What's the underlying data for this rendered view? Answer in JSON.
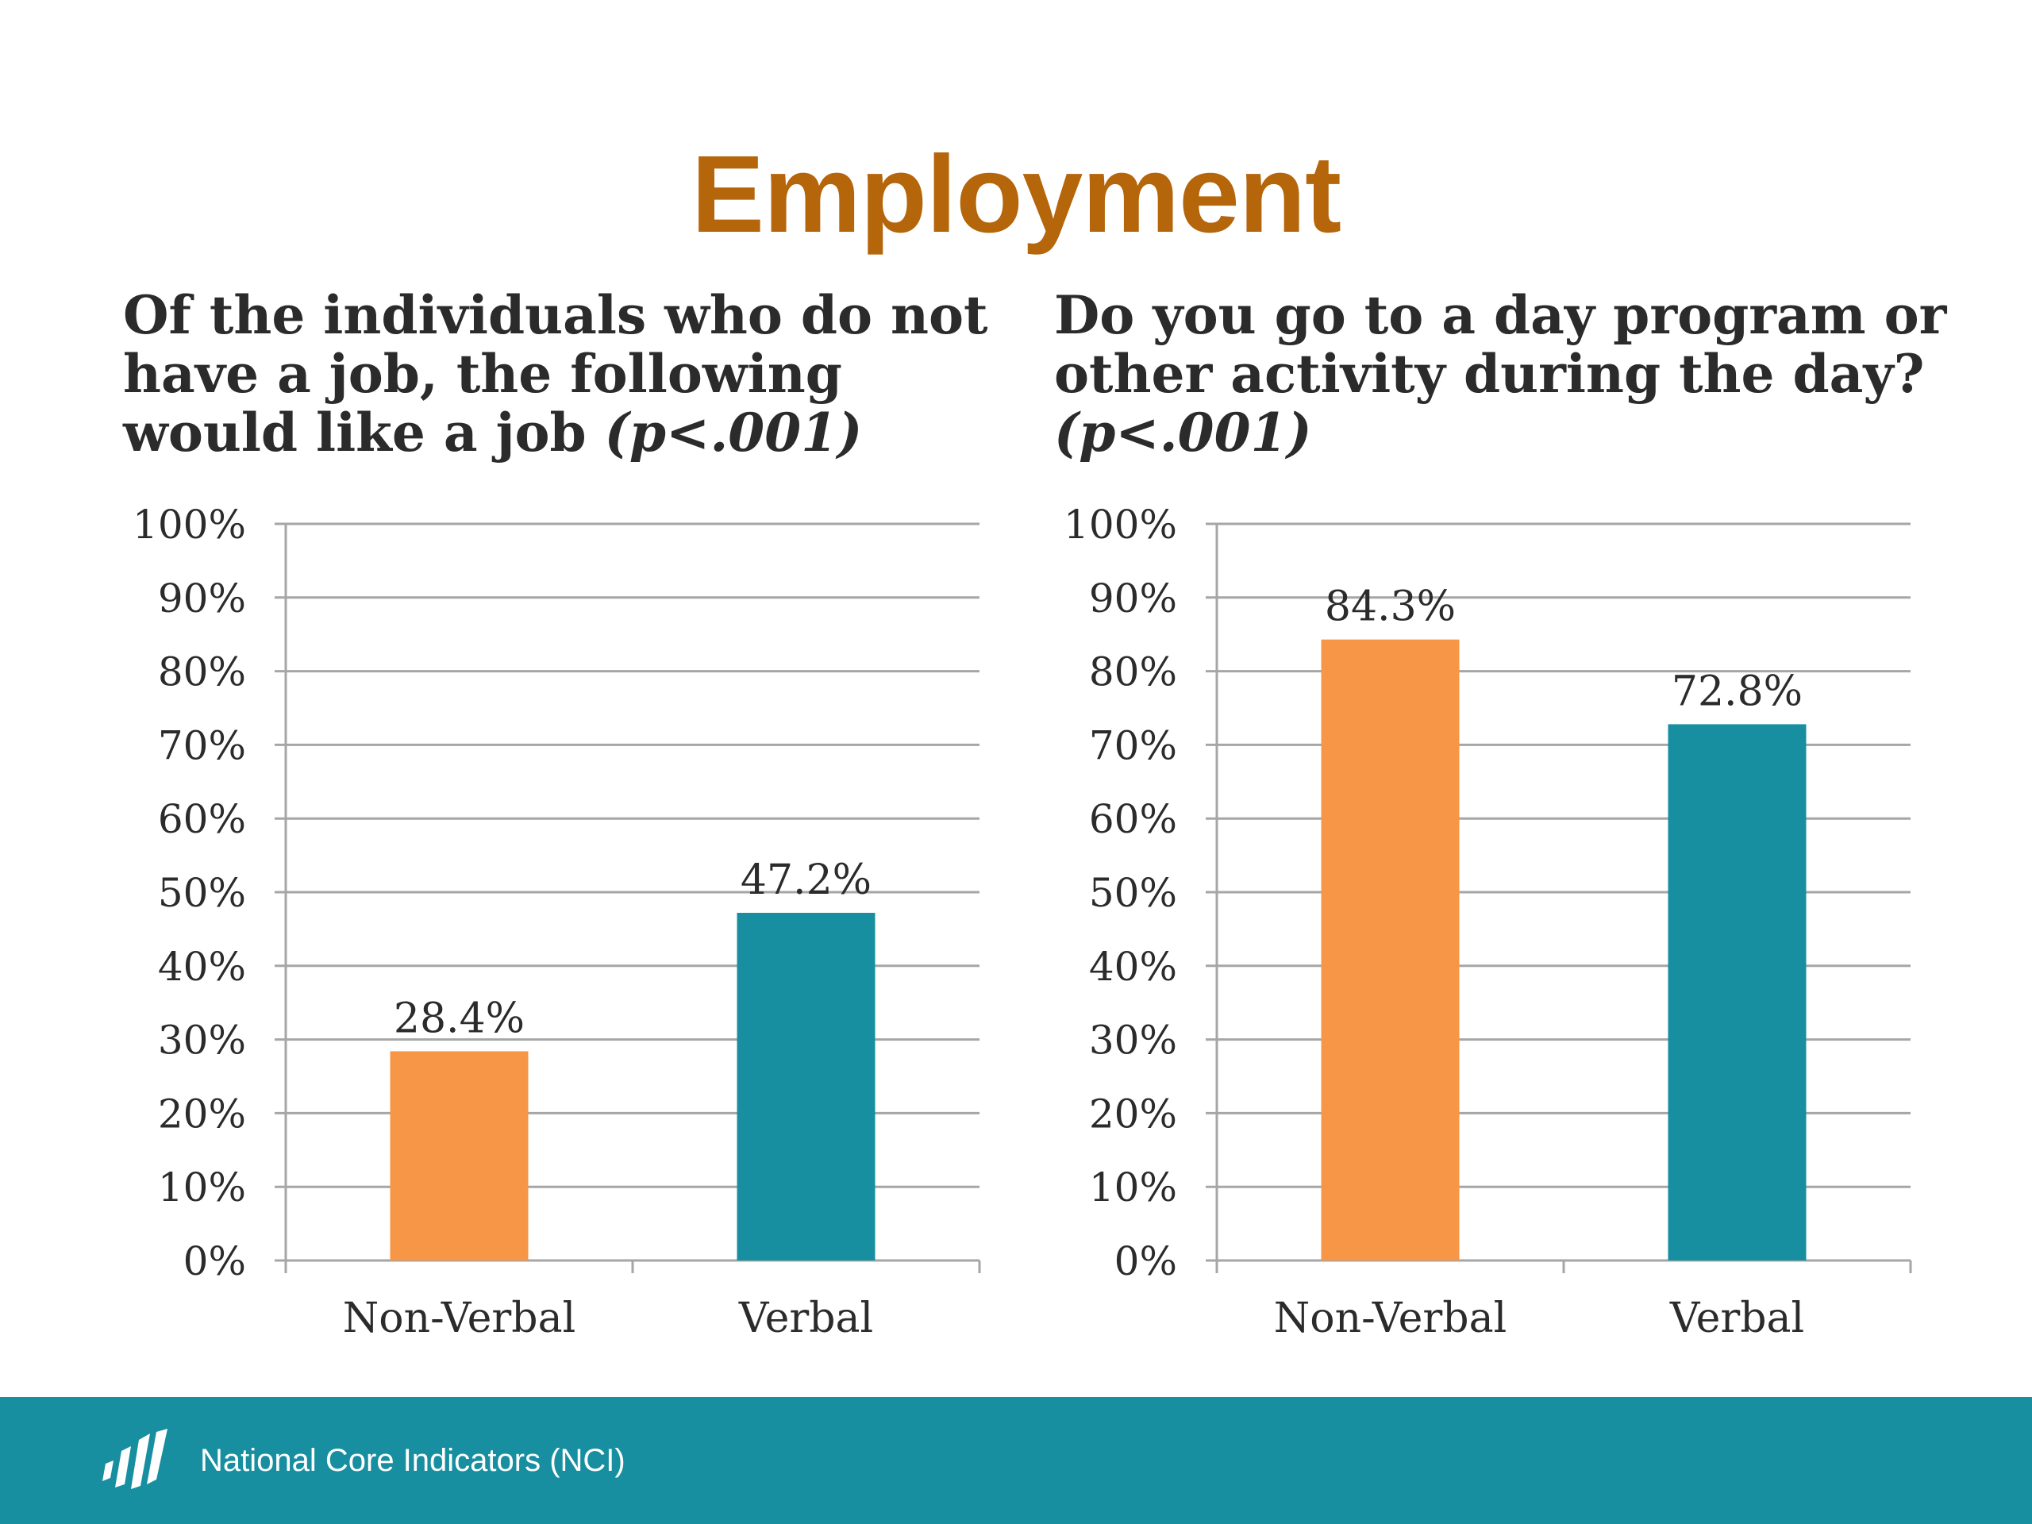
{
  "title": "Employment",
  "left_subtitle": {
    "text": "Of the individuals who do not have a job, the following would like a job",
    "pvalue": "(p<.001)"
  },
  "right_subtitle": {
    "text": "Do you go to a day program or other activity during the day?",
    "pvalue": "(p<.001)"
  },
  "footer": {
    "org": "National Core Indicators (NCI)",
    "logo_icon": "nci-stripes-logo-icon"
  },
  "colors": {
    "title": "#B5650A",
    "non_verbal_bar": "#F79646",
    "verbal_bar": "#178FA0",
    "footer_bg": "#178FA0",
    "gridline": "#a6a6a6",
    "text": "#2b2b2b"
  },
  "chart_data": [
    {
      "type": "bar",
      "categories": [
        "Non-Verbal",
        "Verbal"
      ],
      "values": [
        28.4,
        47.2
      ],
      "data_labels": [
        "28.4%",
        "47.2%"
      ],
      "bar_colors": [
        "#F79646",
        "#178FA0"
      ],
      "ylim": [
        0,
        100
      ],
      "yticks": [
        "0%",
        "10%",
        "20%",
        "30%",
        "40%",
        "50%",
        "60%",
        "70%",
        "80%",
        "90%",
        "100%"
      ],
      "grid": true,
      "legend": "none"
    },
    {
      "type": "bar",
      "categories": [
        "Non-Verbal",
        "Verbal"
      ],
      "values": [
        84.3,
        72.8
      ],
      "data_labels": [
        "84.3%",
        "72.8%"
      ],
      "bar_colors": [
        "#F79646",
        "#178FA0"
      ],
      "ylim": [
        0,
        100
      ],
      "yticks": [
        "0%",
        "10%",
        "20%",
        "30%",
        "40%",
        "50%",
        "60%",
        "70%",
        "80%",
        "90%",
        "100%"
      ],
      "grid": true,
      "legend": "none"
    }
  ]
}
